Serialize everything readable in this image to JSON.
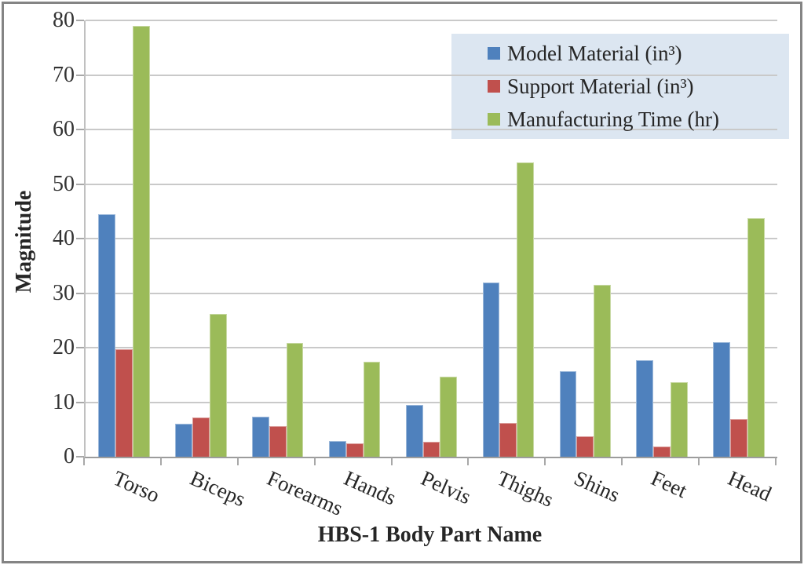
{
  "chart_data": {
    "type": "bar",
    "title": "",
    "xlabel": "HBS-1 Body Part Name",
    "ylabel": "Magnitude",
    "ylim": [
      0,
      80
    ],
    "yticks": [
      0,
      10,
      20,
      30,
      40,
      50,
      60,
      70,
      80
    ],
    "grid": true,
    "legend_position": "inside-top-right",
    "categories": [
      "Torso",
      "Biceps",
      "Forearms",
      "Hands",
      "Pelvis",
      "Thighs",
      "Shins",
      "Feet",
      "Head"
    ],
    "series": [
      {
        "name": "Model Material (in³)",
        "color": "#4F81BD",
        "values": [
          44.5,
          6.1,
          7.4,
          2.9,
          9.5,
          32.0,
          15.7,
          17.7,
          21.0
        ]
      },
      {
        "name": "Support Material (in³)",
        "color": "#C0504D",
        "values": [
          19.7,
          7.2,
          5.6,
          2.5,
          2.7,
          6.2,
          3.7,
          1.9,
          6.9
        ]
      },
      {
        "name": "Manufacturing Time (hr)",
        "color": "#9BBB59",
        "values": [
          79.0,
          26.2,
          20.8,
          17.4,
          14.7,
          54.0,
          31.5,
          13.7,
          43.8
        ]
      }
    ],
    "colors": {
      "legend_background": "#DCE6F1",
      "gridline": "#C9C9C9",
      "axis_line": "#9C9C9C",
      "text": "#262626",
      "frame_border": "#848484"
    }
  }
}
